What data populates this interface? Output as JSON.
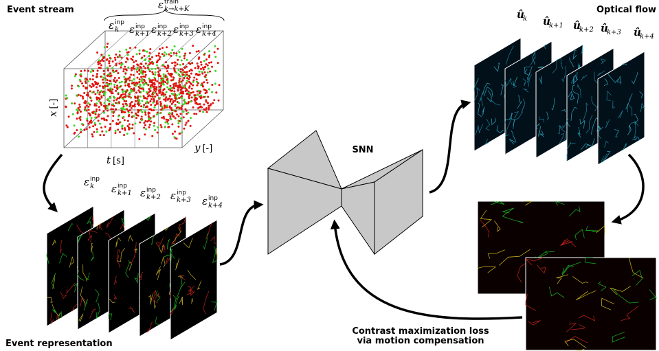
{
  "event_stream": {
    "title": "Event stream",
    "train_label": {
      "base": "ε",
      "sup": "train",
      "sub": "k→k+K"
    },
    "input_labels": [
      {
        "base": "ε",
        "sup": "inp",
        "sub": "k"
      },
      {
        "base": "ε",
        "sup": "inp",
        "sub": "k+1"
      },
      {
        "base": "ε",
        "sup": "inp",
        "sub": "k+2"
      },
      {
        "base": "ε",
        "sup": "inp",
        "sub": "k+3"
      },
      {
        "base": "ε",
        "sup": "inp",
        "sub": "k+4"
      }
    ],
    "axes": {
      "x": {
        "var": "x",
        "unit": "[-]"
      },
      "t": {
        "var": "t",
        "unit": "[s]"
      },
      "y": {
        "var": "y",
        "unit": "[-]"
      }
    }
  },
  "event_representation": {
    "title": "Event representation",
    "labels": [
      {
        "base": "ε",
        "sup": "inp",
        "sub": "k"
      },
      {
        "base": "ε",
        "sup": "inp",
        "sub": "k+1"
      },
      {
        "base": "ε",
        "sup": "inp",
        "sub": "k+2"
      },
      {
        "base": "ε",
        "sup": "inp",
        "sub": "k+3"
      },
      {
        "base": "ε",
        "sup": "inp",
        "sub": "k+4"
      }
    ]
  },
  "network": {
    "label": "SNN"
  },
  "optical_flow": {
    "title": "Optical flow",
    "labels": [
      {
        "base": "û",
        "sub": "k"
      },
      {
        "base": "û",
        "sub": "k+1"
      },
      {
        "base": "û",
        "sub": "k+2"
      },
      {
        "base": "û",
        "sub": "k+3"
      },
      {
        "base": "û",
        "sub": "k+4"
      }
    ]
  },
  "loss": {
    "lines": [
      "Contrast maximization loss",
      "via motion compensation"
    ]
  }
}
